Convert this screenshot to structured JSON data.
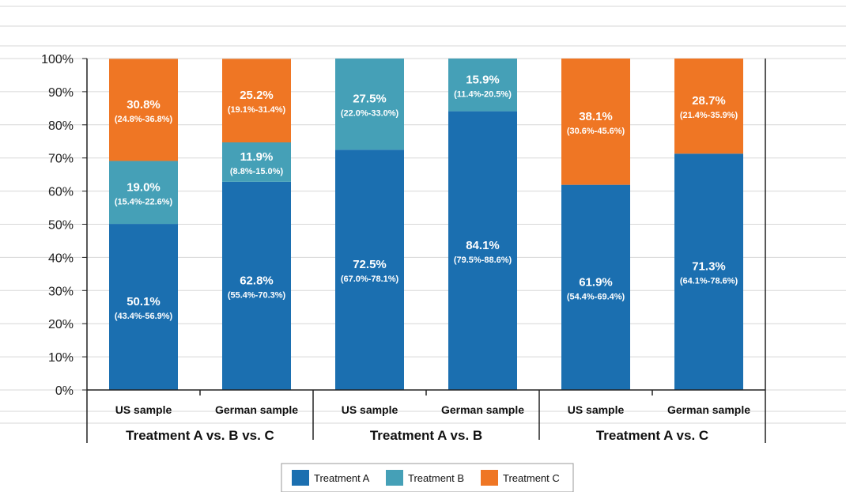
{
  "chart_data": {
    "type": "bar",
    "stacked": true,
    "ylim": [
      0,
      100
    ],
    "yticks": [
      "0%",
      "10%",
      "20%",
      "30%",
      "40%",
      "50%",
      "60%",
      "70%",
      "80%",
      "90%",
      "100%"
    ],
    "grid": true,
    "legend_position": "bottom",
    "groups": [
      {
        "label": "Treatment A vs. B vs. C",
        "categories": [
          "US sample",
          "German sample"
        ]
      },
      {
        "label": "Treatment A vs. B",
        "categories": [
          "US sample",
          "German sample"
        ]
      },
      {
        "label": "Treatment A vs. C",
        "categories": [
          "US sample",
          "German sample"
        ]
      }
    ],
    "series": [
      {
        "name": "Treatment A",
        "color": "#1b6fb0",
        "values": [
          50.1,
          62.8,
          72.5,
          84.1,
          61.9,
          71.3
        ],
        "labels": [
          "50.1%",
          "62.8%",
          "72.5%",
          "84.1%",
          "61.9%",
          "71.3%"
        ],
        "ci": [
          "(43.4%-56.9%)",
          "(55.4%-70.3%)",
          "(67.0%-78.1%)",
          "(79.5%-88.6%)",
          "(54.4%-69.4%)",
          "(64.1%-78.6%)"
        ]
      },
      {
        "name": "Treatment B",
        "color": "#45a0b7",
        "values": [
          19.0,
          11.9,
          27.5,
          15.9,
          null,
          null
        ],
        "labels": [
          "19.0%",
          "11.9%",
          "27.5%",
          "15.9%",
          null,
          null
        ],
        "ci": [
          "(15.4%-22.6%)",
          "(8.8%-15.0%)",
          "(22.0%-33.0%)",
          "(11.4%-20.5%)",
          null,
          null
        ]
      },
      {
        "name": "Treatment C",
        "color": "#ef7624",
        "values": [
          30.8,
          25.2,
          null,
          null,
          38.1,
          28.7
        ],
        "labels": [
          "30.8%",
          "25.2%",
          null,
          null,
          "38.1%",
          "28.7%"
        ],
        "ci": [
          "(24.8%-36.8%)",
          "(19.1%-31.4%)",
          null,
          null,
          "(30.6%-45.6%)",
          "(21.4%-35.9%)"
        ]
      }
    ]
  }
}
